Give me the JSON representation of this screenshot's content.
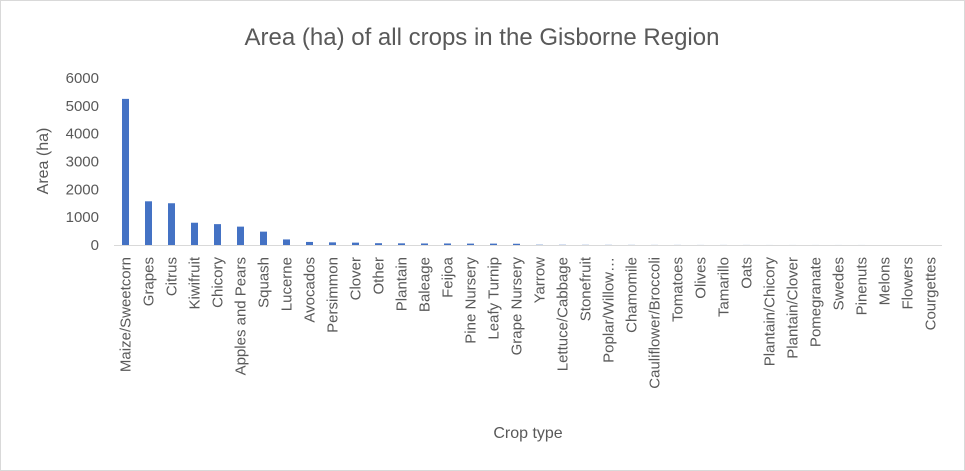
{
  "chart_data": {
    "type": "bar",
    "title": "Area (ha) of all crops in the Gisborne Region",
    "xlabel": "Crop type",
    "ylabel": "Area (ha)",
    "ylim": [
      0,
      6000
    ],
    "yticks": [
      0,
      1000,
      2000,
      3000,
      4000,
      5000,
      6000
    ],
    "grid": false,
    "legend": "none",
    "bar_color": "#4472c4",
    "categories": [
      "Maize/Sweetcorn",
      "Grapes",
      "Citrus",
      "Kiwifruit",
      "Chicory",
      "Apples and Pears",
      "Squash",
      "Lucerne",
      "Avocados",
      "Persimmon",
      "Clover",
      "Other",
      "Plantain",
      "Baleage",
      "Feijoa",
      "Pine Nursery",
      "Leafy Turnip",
      "Grape Nursery",
      "Yarrow",
      "Lettuce/Cabbage",
      "Stonefruit",
      "Poplar/Willow…",
      "Chamomile",
      "Cauliflower/Broccoli",
      "Tomatoes",
      "Olives",
      "Tamarillo",
      "Oats",
      "Plantain/Chicory",
      "Plantain/Clover",
      "Pomegranate",
      "Swedes",
      "Pinenuts",
      "Melons",
      "Flowers",
      "Courgettes"
    ],
    "values": [
      5250,
      1570,
      1500,
      800,
      750,
      660,
      480,
      200,
      110,
      95,
      85,
      65,
      60,
      55,
      55,
      50,
      50,
      45,
      10,
      8,
      6,
      5,
      4,
      3,
      3,
      2,
      2,
      2,
      1,
      1,
      1,
      1,
      1,
      0,
      0,
      0
    ]
  }
}
